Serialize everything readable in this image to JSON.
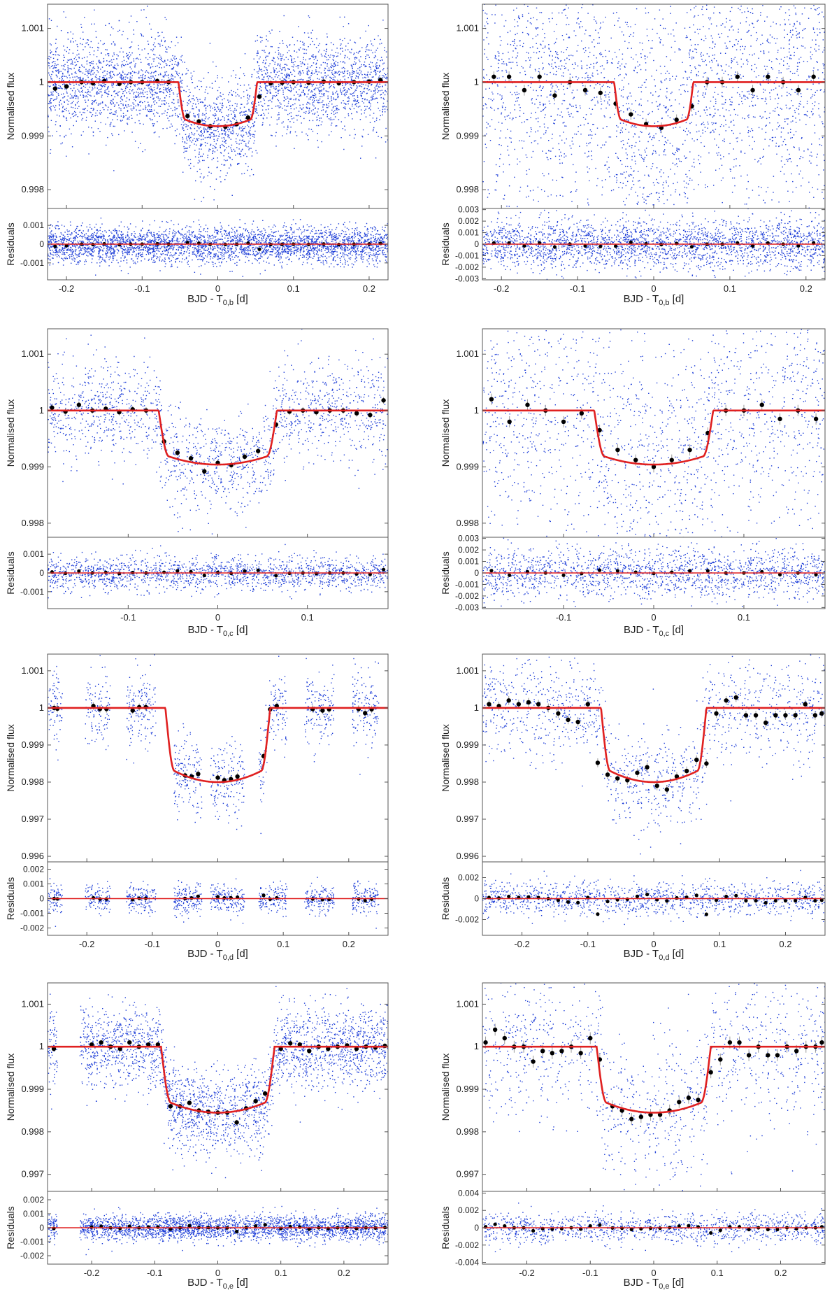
{
  "figure": {
    "ylabel_flux": "Normalised flux",
    "ylabel_resid": "Residuals",
    "colors": {
      "points": "#1f3fd8",
      "model": "#e02020",
      "binned": "#000000",
      "errorbar": "#9a9a9a",
      "axes": "#555555"
    }
  },
  "chart_data": [
    {
      "type": "scatter",
      "panel": "b-left",
      "xlabel": "BJD - T",
      "xlabel_sub": "0,b",
      "xlabel_unit": " [d]",
      "xlim": [
        -0.225,
        0.225
      ],
      "xticks": [
        -0.2,
        -0.1,
        0,
        0.1,
        0.2
      ],
      "xtick_labels": [
        "-0.2",
        "-0.1",
        "0",
        "0.1",
        "0.2"
      ],
      "flux_ylim": [
        0.99765,
        1.00145
      ],
      "flux_yticks": [
        0.998,
        0.999,
        1,
        1.001
      ],
      "flux_ytick_labels": [
        "0.998",
        "0.999",
        "1",
        "1.001"
      ],
      "resid_ylim": [
        -0.0019,
        0.0019
      ],
      "resid_yticks": [
        -0.001,
        0,
        0.001
      ],
      "resid_ytick_labels": [
        "-0.001",
        "0",
        "0.001"
      ],
      "model": {
        "t1": -0.052,
        "t4": 0.052,
        "depth": 0.00082
      },
      "scatter": {
        "n": 3600,
        "sigma": 0.00045,
        "resid_sigma": 0.00048,
        "gaps": []
      },
      "binned": {
        "x": [
          -0.215,
          -0.2,
          -0.18,
          -0.165,
          -0.15,
          -0.13,
          -0.115,
          -0.1,
          -0.08,
          -0.065,
          -0.04,
          -0.025,
          -0.01,
          0.01,
          0.025,
          0.04,
          0.055,
          0.07,
          0.085,
          0.1,
          0.12,
          0.14,
          0.16,
          0.18,
          0.2,
          0.215
        ],
        "y": [
          0.99988,
          0.99992,
          1.0,
          0.99998,
          1.00002,
          0.99997,
          1.0,
          1.0,
          1.00002,
          1.0,
          0.99937,
          0.99927,
          0.99918,
          0.99917,
          0.99922,
          0.99934,
          0.99973,
          0.99998,
          0.99999,
          1.0,
          0.99999,
          1.00001,
          0.99998,
          1.0,
          1.00001,
          1.00004
        ],
        "err": 5e-05
      }
    },
    {
      "type": "scatter",
      "panel": "b-right",
      "xlabel": "BJD - T",
      "xlabel_sub": "0,b",
      "xlabel_unit": " [d]",
      "xlim": [
        -0.225,
        0.225
      ],
      "xticks": [
        -0.2,
        -0.1,
        0,
        0.1,
        0.2
      ],
      "xtick_labels": [
        "-0.2",
        "-0.1",
        "0",
        "0.1",
        "0.2"
      ],
      "flux_ylim": [
        0.99765,
        1.00145
      ],
      "flux_yticks": [
        0.998,
        0.999,
        1,
        1.001
      ],
      "flux_ytick_labels": [
        "0.998",
        "0.999",
        "1",
        "1.001"
      ],
      "resid_ylim": [
        -0.0031,
        0.0031
      ],
      "resid_yticks": [
        -0.003,
        -0.002,
        -0.001,
        0,
        0.001,
        0.002,
        0.003
      ],
      "resid_ytick_labels": [
        "-0.003",
        "-0.002",
        "-0.001",
        "0",
        "0.001",
        "0.002",
        "0.003"
      ],
      "model": {
        "t1": -0.052,
        "t4": 0.052,
        "depth": 0.00082
      },
      "scatter": {
        "n": 2600,
        "sigma": 0.0012,
        "resid_sigma": 0.0011,
        "gaps": []
      },
      "binned": {
        "x": [
          -0.21,
          -0.19,
          -0.17,
          -0.15,
          -0.13,
          -0.11,
          -0.09,
          -0.07,
          -0.05,
          -0.03,
          -0.01,
          0.01,
          0.03,
          0.05,
          0.07,
          0.09,
          0.11,
          0.13,
          0.15,
          0.17,
          0.19,
          0.21
        ],
        "y": [
          1.0001,
          1.0001,
          0.99985,
          1.0001,
          0.99975,
          1.0,
          0.99985,
          0.9998,
          0.9996,
          0.9994,
          0.99922,
          0.99915,
          0.9993,
          0.99955,
          1.0,
          1.0,
          1.0001,
          0.99985,
          1.0001,
          1.0,
          0.99985,
          1.0001
        ],
        "err": 0.0001
      }
    },
    {
      "type": "scatter",
      "panel": "c-left",
      "xlabel": "BJD - T",
      "xlabel_sub": "0,c",
      "xlabel_unit": " [d]",
      "xlim": [
        -0.19,
        0.19
      ],
      "xticks": [
        -0.1,
        0,
        0.1
      ],
      "xtick_labels": [
        "-0.1",
        "0",
        "0.1"
      ],
      "flux_ylim": [
        0.99775,
        1.00145
      ],
      "flux_yticks": [
        0.998,
        0.999,
        1,
        1.001
      ],
      "flux_ytick_labels": [
        "0.998",
        "0.999",
        "1",
        "1.001"
      ],
      "resid_ylim": [
        -0.0019,
        0.0019
      ],
      "resid_yticks": [
        -0.001,
        0,
        0.001
      ],
      "resid_ytick_labels": [
        "-0.001",
        "0",
        "0.001"
      ],
      "model": {
        "t1": -0.066,
        "t4": 0.066,
        "depth": 0.00096
      },
      "scatter": {
        "n": 1700,
        "sigma": 0.00045,
        "resid_sigma": 0.00045,
        "gaps": []
      },
      "binned": {
        "x": [
          -0.185,
          -0.17,
          -0.155,
          -0.14,
          -0.125,
          -0.11,
          -0.095,
          -0.08,
          -0.06,
          -0.045,
          -0.03,
          -0.015,
          0.0,
          0.015,
          0.03,
          0.045,
          0.065,
          0.08,
          0.095,
          0.11,
          0.125,
          0.14,
          0.155,
          0.17,
          0.185
        ],
        "y": [
          1.00005,
          0.99998,
          1.0001,
          1.0,
          1.00003,
          0.99997,
          1.00002,
          1.0,
          0.99945,
          0.99925,
          0.99915,
          0.99892,
          0.99907,
          0.99903,
          0.99918,
          0.99928,
          0.99975,
          0.99998,
          1.0,
          0.99997,
          1.0,
          1.0,
          0.99995,
          0.99992,
          1.00018
        ],
        "err": 6e-05
      }
    },
    {
      "type": "scatter",
      "panel": "c-right",
      "xlabel": "BJD - T",
      "xlabel_sub": "0,c",
      "xlabel_unit": " [d]",
      "xlim": [
        -0.19,
        0.19
      ],
      "xticks": [
        -0.1,
        0,
        0.1
      ],
      "xtick_labels": [
        "-0.1",
        "0",
        "0.1"
      ],
      "flux_ylim": [
        0.99775,
        1.00145
      ],
      "flux_yticks": [
        0.998,
        0.999,
        1,
        1.001
      ],
      "flux_ytick_labels": [
        "0.998",
        "0.999",
        "1",
        "1.001"
      ],
      "resid_ylim": [
        -0.0031,
        0.0031
      ],
      "resid_yticks": [
        -0.003,
        -0.002,
        -0.001,
        0,
        0.001,
        0.002,
        0.003
      ],
      "resid_ytick_labels": [
        "-0.003",
        "-0.002",
        "-0.001",
        "0",
        "0.001",
        "0.002",
        "0.003"
      ],
      "model": {
        "t1": -0.066,
        "t4": 0.066,
        "depth": 0.00096
      },
      "scatter": {
        "n": 1800,
        "sigma": 0.0012,
        "resid_sigma": 0.0011,
        "gaps": []
      },
      "binned": {
        "x": [
          -0.18,
          -0.16,
          -0.14,
          -0.12,
          -0.1,
          -0.08,
          -0.06,
          -0.04,
          -0.02,
          0.0,
          0.02,
          0.04,
          0.06,
          0.08,
          0.1,
          0.12,
          0.14,
          0.16,
          0.18
        ],
        "y": [
          1.0002,
          0.9998,
          1.0001,
          1.0,
          0.9998,
          0.99995,
          0.99965,
          0.9993,
          0.99912,
          0.999,
          0.99912,
          0.9993,
          0.9996,
          1.0,
          1.0,
          1.0001,
          0.99985,
          1.0,
          0.99985
        ],
        "err": 0.0001
      }
    },
    {
      "type": "scatter",
      "panel": "d-left",
      "xlabel": "BJD - T",
      "xlabel_sub": "0,d",
      "xlabel_unit": " [d]",
      "xlim": [
        -0.26,
        0.26
      ],
      "xticks": [
        -0.2,
        -0.1,
        0,
        0.1,
        0.2
      ],
      "xtick_labels": [
        "-0.2",
        "-0.1",
        "0",
        "0.1",
        "0.2"
      ],
      "flux_ylim": [
        0.99585,
        1.00145
      ],
      "flux_yticks": [
        0.996,
        0.997,
        0.998,
        0.999,
        1,
        1.001
      ],
      "flux_ytick_labels": [
        "0.996",
        "0.997",
        "0.998",
        "0.999",
        "1",
        "1.001"
      ],
      "resid_ylim": [
        -0.0025,
        0.0025
      ],
      "resid_yticks": [
        -0.002,
        -0.001,
        0,
        0.001,
        0.002
      ],
      "resid_ytick_labels": [
        "-0.002",
        "-0.001",
        "0",
        "0.001",
        "0.002"
      ],
      "model": {
        "t1": -0.08,
        "t4": 0.08,
        "depth": 0.002
      },
      "scatter": {
        "n": 1100,
        "sigma": 0.0005,
        "resid_sigma": 0.0005,
        "gaps": [
          [
            -0.238,
            -0.203
          ],
          [
            -0.165,
            -0.14
          ],
          [
            -0.095,
            -0.068
          ],
          [
            -0.025,
            -0.012
          ],
          [
            0.04,
            0.062
          ],
          [
            0.105,
            0.132
          ],
          [
            0.178,
            0.205
          ],
          [
            0.245,
            0.26
          ]
        ]
      },
      "binned": {
        "x": [
          -0.25,
          -0.245,
          -0.19,
          -0.18,
          -0.17,
          -0.13,
          -0.12,
          -0.11,
          -0.05,
          -0.04,
          -0.03,
          0.0,
          0.01,
          0.02,
          0.03,
          0.07,
          0.08,
          0.09,
          0.145,
          0.16,
          0.17,
          0.215,
          0.225,
          0.235
        ],
        "y": [
          1.0,
          0.99998,
          1.00005,
          0.99997,
          0.99997,
          0.99993,
          1.00002,
          1.00002,
          0.99818,
          0.99815,
          0.99822,
          0.99812,
          0.99805,
          0.99808,
          0.99815,
          0.9987,
          0.99996,
          1.00005,
          0.99997,
          0.99993,
          0.99996,
          0.99997,
          0.99986,
          0.99996
        ],
        "err": 0.0001
      }
    },
    {
      "type": "scatter",
      "panel": "d-right",
      "xlabel": "BJD - T",
      "xlabel_sub": "0,d",
      "xlabel_unit": " [d]",
      "xlim": [
        -0.26,
        0.26
      ],
      "xticks": [
        -0.2,
        -0.1,
        0,
        0.1,
        0.2
      ],
      "xtick_labels": [
        "-0.2",
        "-0.1",
        "0",
        "0.1",
        "0.2"
      ],
      "flux_ylim": [
        0.99585,
        1.00145
      ],
      "flux_yticks": [
        0.996,
        0.997,
        0.998,
        0.999,
        1,
        1.001
      ],
      "flux_ytick_labels": [
        "0.996",
        "0.997",
        "0.998",
        "0.999",
        "1",
        "1.001"
      ],
      "resid_ylim": [
        -0.0035,
        0.0035
      ],
      "resid_yticks": [
        -0.002,
        0,
        0.002
      ],
      "resid_ytick_labels": [
        "-0.002",
        "0",
        "0.002"
      ],
      "model": {
        "t1": -0.08,
        "t4": 0.08,
        "depth": 0.002
      },
      "scatter": {
        "n": 1300,
        "sigma": 0.0007,
        "resid_sigma": 0.0008,
        "gaps": []
      },
      "binned": {
        "x": [
          -0.25,
          -0.235,
          -0.22,
          -0.205,
          -0.19,
          -0.175,
          -0.16,
          -0.145,
          -0.13,
          -0.115,
          -0.1,
          -0.085,
          -0.07,
          -0.055,
          -0.04,
          -0.025,
          -0.01,
          0.005,
          0.02,
          0.035,
          0.05,
          0.065,
          0.08,
          0.095,
          0.11,
          0.125,
          0.14,
          0.155,
          0.17,
          0.185,
          0.2,
          0.215,
          0.23,
          0.245,
          0.255
        ],
        "y": [
          1.0001,
          1.00005,
          1.0002,
          1.0001,
          1.00015,
          1.0001,
          1.0,
          0.99985,
          0.99968,
          0.99962,
          1.0001,
          0.99852,
          0.9982,
          0.9981,
          0.99805,
          0.99825,
          0.9984,
          0.9979,
          0.9978,
          0.99815,
          0.9983,
          0.9986,
          0.9985,
          0.99985,
          1.0002,
          1.00028,
          0.9998,
          0.9998,
          0.9996,
          0.9998,
          0.9998,
          0.9998,
          1.0001,
          0.9998,
          0.99985
        ],
        "err": 0.00012
      }
    },
    {
      "type": "scatter",
      "panel": "e-left",
      "xlabel": "BJD - T",
      "xlabel_sub": "0,e",
      "xlabel_unit": " [d]",
      "xlim": [
        -0.27,
        0.27
      ],
      "xticks": [
        -0.2,
        -0.1,
        0,
        0.1,
        0.2
      ],
      "xtick_labels": [
        "-0.2",
        "-0.1",
        "0",
        "0.1",
        "0.2"
      ],
      "flux_ylim": [
        0.9966,
        1.0015
      ],
      "flux_yticks": [
        0.997,
        0.998,
        0.999,
        1,
        1.001
      ],
      "flux_ytick_labels": [
        "0.997",
        "0.998",
        "0.999",
        "1",
        "1.001"
      ],
      "resid_ylim": [
        -0.0026,
        0.0026
      ],
      "resid_yticks": [
        -0.002,
        -0.001,
        0,
        0.001,
        0.002
      ],
      "resid_ytick_labels": [
        "-0.002",
        "-0.001",
        "0",
        "0.001",
        "0.002"
      ],
      "model": {
        "t1": -0.09,
        "t4": 0.09,
        "depth": 0.00155
      },
      "scatter": {
        "n": 2700,
        "sigma": 0.00048,
        "resid_sigma": 0.00045,
        "gaps": [
          [
            -0.255,
            -0.22
          ]
        ]
      },
      "binned": {
        "x": [
          -0.26,
          -0.2,
          -0.185,
          -0.17,
          -0.155,
          -0.14,
          -0.125,
          -0.11,
          -0.095,
          -0.075,
          -0.06,
          -0.045,
          -0.03,
          -0.015,
          0.0,
          0.015,
          0.03,
          0.045,
          0.06,
          0.075,
          0.1,
          0.115,
          0.13,
          0.145,
          0.16,
          0.175,
          0.19,
          0.205,
          0.22,
          0.235,
          0.25,
          0.265
        ],
        "y": [
          0.99995,
          1.00005,
          1.0001,
          1.0,
          0.99995,
          1.0001,
          1.0,
          1.00005,
          1.00005,
          0.9986,
          0.9986,
          0.99868,
          0.9985,
          0.99847,
          0.99845,
          0.99845,
          0.99822,
          0.99855,
          0.99872,
          0.9989,
          0.99995,
          1.00008,
          1.00005,
          0.9999,
          1.0,
          0.99995,
          1.0,
          1.00003,
          0.99995,
          1.0,
          0.99998,
          1.00002
        ],
        "err": 6e-05
      }
    },
    {
      "type": "scatter",
      "panel": "e-right",
      "xlabel": "BJD - T",
      "xlabel_sub": "0,e",
      "xlabel_unit": " [d]",
      "xlim": [
        -0.27,
        0.27
      ],
      "xticks": [
        -0.2,
        -0.1,
        0,
        0.1,
        0.2
      ],
      "xtick_labels": [
        "-0.2",
        "-0.1",
        "0",
        "0.1",
        "0.2"
      ],
      "flux_ylim": [
        0.9966,
        1.0015
      ],
      "flux_yticks": [
        0.997,
        0.998,
        0.999,
        1,
        1.001
      ],
      "flux_ytick_labels": [
        "0.997",
        "0.998",
        "0.999",
        "1",
        "1.001"
      ],
      "resid_ylim": [
        -0.0042,
        0.0042
      ],
      "resid_yticks": [
        -0.004,
        -0.002,
        0,
        0.002,
        0.004
      ],
      "resid_ytick_labels": [
        "-0.004",
        "-0.002",
        "0",
        "0.002",
        "0.004"
      ],
      "model": {
        "t1": -0.09,
        "t4": 0.09,
        "depth": 0.00155
      },
      "scatter": {
        "n": 1200,
        "sigma": 0.0009,
        "resid_sigma": 0.0009,
        "gaps": []
      },
      "binned": {
        "x": [
          -0.265,
          -0.25,
          -0.235,
          -0.22,
          -0.205,
          -0.19,
          -0.175,
          -0.16,
          -0.145,
          -0.13,
          -0.115,
          -0.1,
          -0.085,
          -0.065,
          -0.05,
          -0.035,
          -0.02,
          -0.005,
          0.01,
          0.025,
          0.04,
          0.055,
          0.07,
          0.09,
          0.105,
          0.12,
          0.135,
          0.15,
          0.165,
          0.18,
          0.195,
          0.21,
          0.225,
          0.24,
          0.255,
          0.265
        ],
        "y": [
          1.0001,
          1.0004,
          1.0002,
          1.0,
          1.0,
          0.99965,
          0.9999,
          0.99985,
          0.9999,
          1.0,
          0.99985,
          1.0002,
          0.9997,
          0.9986,
          0.9985,
          0.9983,
          0.99835,
          0.9984,
          0.9984,
          0.9985,
          0.9987,
          0.9988,
          0.99875,
          0.9994,
          0.9997,
          1.0001,
          1.0001,
          0.9998,
          1.0,
          0.9998,
          0.9998,
          1.0,
          0.9999,
          1.0,
          1.0,
          1.0001
        ],
        "err": 0.00014
      }
    }
  ]
}
